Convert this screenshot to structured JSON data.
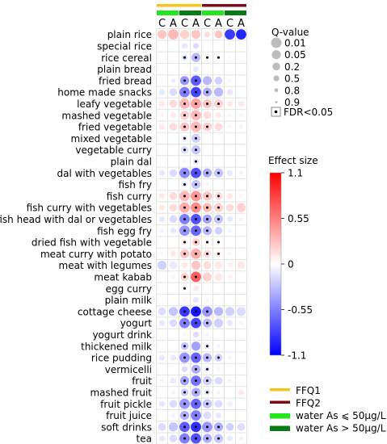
{
  "chart_data": {
    "type": "heatmap",
    "title": "",
    "columns": [
      "C",
      "A",
      "C",
      "A",
      "C",
      "A",
      "C",
      "A"
    ],
    "column_groups": {
      "ffq": [
        "FFQ1",
        "FFQ1",
        "FFQ1",
        "FFQ1",
        "FFQ2",
        "FFQ2",
        "FFQ2",
        "FFQ2"
      ],
      "water": [
        "low",
        "low",
        "high",
        "high",
        "low",
        "low",
        "high",
        "high"
      ]
    },
    "rows": [
      "plain rice",
      "special rice",
      "rice cereal",
      "plain bread",
      "fried bread",
      "home made snacks",
      "leafy vegetable",
      "mashed vegetable",
      "fried vegetable",
      "mixed vegetable",
      "vegetable curry",
      "plain dal",
      "dal with vegetables",
      "fish fry",
      "fish curry",
      "fish curry with vegetables",
      "fish head with dal or vegetables",
      "fish egg fry",
      "dried fish with vegetable",
      "meat curry with potato",
      "meat with legumes",
      "meat kabab",
      "egg curry",
      "plain milk",
      "cottage cheese",
      "yogurt",
      "yogurt drink",
      "thickened milk",
      "rice pudding",
      "vermicelli",
      "fruit",
      "mashed fruit",
      "fruit pickle",
      "fruit juice",
      "soft drinks",
      "tea"
    ],
    "effect": [
      [
        0.25,
        0.3,
        0.2,
        0.25,
        0.15,
        0.25,
        -0.85,
        -0.95
      ],
      [
        0,
        0,
        -0.1,
        -0.15,
        0,
        0,
        0,
        0
      ],
      [
        0,
        0,
        -0.15,
        -0.3,
        -0.05,
        -0.05,
        -0.05,
        0
      ],
      [
        0,
        0,
        0,
        -0.1,
        0,
        0,
        0,
        0
      ],
      [
        -0.05,
        -0.1,
        -0.45,
        -0.7,
        -0.3,
        -0.2,
        -0.05,
        0
      ],
      [
        -0.1,
        -0.15,
        -0.55,
        -0.8,
        -0.35,
        -0.3,
        -0.1,
        0
      ],
      [
        0.1,
        0.15,
        0.3,
        0.4,
        0.25,
        0.2,
        0.1,
        0.1
      ],
      [
        0.05,
        0.1,
        0.2,
        0.3,
        0.15,
        0.1,
        0.05,
        0.05
      ],
      [
        0.1,
        0.15,
        0.25,
        0.3,
        0.2,
        0.15,
        0.05,
        0.05
      ],
      [
        0,
        0,
        -0.1,
        -0.2,
        0,
        0,
        0,
        0
      ],
      [
        0,
        0,
        -0.15,
        -0.25,
        0,
        0,
        0,
        0
      ],
      [
        0,
        0,
        -0.05,
        -0.1,
        0,
        0,
        0,
        0
      ],
      [
        -0.1,
        -0.15,
        -0.5,
        -0.75,
        -0.35,
        -0.25,
        -0.1,
        -0.05
      ],
      [
        0,
        0,
        -0.1,
        -0.25,
        -0.05,
        0,
        0,
        0
      ],
      [
        0.1,
        0.15,
        0.3,
        0.45,
        0.25,
        0.15,
        0.1,
        0.05
      ],
      [
        0.1,
        0.15,
        0.35,
        0.5,
        0.3,
        0.2,
        0.15,
        0.2
      ],
      [
        -0.1,
        -0.15,
        -0.55,
        -0.75,
        -0.4,
        -0.25,
        -0.1,
        -0.05
      ],
      [
        -0.05,
        -0.1,
        -0.45,
        -0.65,
        -0.3,
        -0.2,
        -0.05,
        0
      ],
      [
        0,
        0,
        0.1,
        0.2,
        0.05,
        0.05,
        0,
        0
      ],
      [
        0.05,
        0.1,
        0.25,
        0.35,
        0.15,
        0.1,
        0.05,
        0
      ],
      [
        -0.2,
        -0.1,
        0.1,
        0.25,
        0.15,
        0.1,
        0.05,
        0.1
      ],
      [
        0,
        0.05,
        0.2,
        0.7,
        0.2,
        0.1,
        0.05,
        0
      ],
      [
        0,
        0,
        0.05,
        0.1,
        0,
        0,
        0,
        0
      ],
      [
        0,
        0,
        -0.05,
        -0.1,
        -0.05,
        0,
        0,
        0
      ],
      [
        -0.15,
        -0.25,
        -0.85,
        -1.0,
        -0.45,
        -0.3,
        -0.2,
        -0.15
      ],
      [
        -0.1,
        -0.15,
        -0.55,
        -0.8,
        -0.3,
        -0.2,
        -0.1,
        -0.05
      ],
      [
        0,
        0,
        -0.05,
        -0.15,
        -0.05,
        0,
        0,
        0
      ],
      [
        0,
        0,
        -0.25,
        -0.4,
        -0.1,
        -0.05,
        0,
        0
      ],
      [
        -0.1,
        -0.1,
        -0.45,
        -0.65,
        -0.3,
        -0.2,
        -0.05,
        0
      ],
      [
        0,
        0,
        -0.15,
        -0.35,
        -0.1,
        -0.05,
        0,
        0
      ],
      [
        -0.05,
        -0.1,
        -0.4,
        -0.6,
        -0.2,
        -0.15,
        -0.05,
        0
      ],
      [
        0,
        -0.05,
        -0.2,
        -0.35,
        -0.1,
        -0.05,
        0,
        0.1
      ],
      [
        -0.1,
        -0.15,
        -0.45,
        -0.65,
        -0.25,
        -0.15,
        -0.05,
        0
      ],
      [
        0,
        -0.05,
        -0.35,
        -0.55,
        -0.15,
        -0.1,
        0,
        0
      ],
      [
        -0.15,
        -0.25,
        -0.7,
        -0.9,
        -0.45,
        -0.35,
        -0.2,
        -0.15
      ],
      [
        -0.1,
        -0.15,
        -0.55,
        -0.75,
        -0.35,
        -0.25,
        -0.1,
        -0.05
      ]
    ],
    "qvalue": [
      [
        0.05,
        0.01,
        0.1,
        0.05,
        0.5,
        0.2,
        0.01,
        0.01
      ],
      [
        0.9,
        0.9,
        0.5,
        0.5,
        0.9,
        0.9,
        0.9,
        0.9
      ],
      [
        0.9,
        0.9,
        0.5,
        0.1,
        0.9,
        0.9,
        0.9,
        0.9
      ],
      [
        0.9,
        0.9,
        0.9,
        0.5,
        0.9,
        0.9,
        0.9,
        0.9
      ],
      [
        0.9,
        0.8,
        0.05,
        0.01,
        0.1,
        0.2,
        0.9,
        0.9
      ],
      [
        0.5,
        0.2,
        0.01,
        0.01,
        0.05,
        0.05,
        0.5,
        0.9
      ],
      [
        0.5,
        0.2,
        0.01,
        0.01,
        0.05,
        0.1,
        0.5,
        0.5
      ],
      [
        0.8,
        0.5,
        0.05,
        0.01,
        0.2,
        0.5,
        0.8,
        0.8
      ],
      [
        0.5,
        0.2,
        0.05,
        0.01,
        0.05,
        0.2,
        0.8,
        0.8
      ],
      [
        0.9,
        0.9,
        0.5,
        0.1,
        0.9,
        0.9,
        0.9,
        0.9
      ],
      [
        0.9,
        0.9,
        0.2,
        0.05,
        0.9,
        0.9,
        0.9,
        0.9
      ],
      [
        0.9,
        0.9,
        0.9,
        0.5,
        0.9,
        0.9,
        0.9,
        0.9
      ],
      [
        0.5,
        0.2,
        0.01,
        0.01,
        0.05,
        0.1,
        0.5,
        0.8
      ],
      [
        0.9,
        0.9,
        0.5,
        0.1,
        0.8,
        0.9,
        0.9,
        0.9
      ],
      [
        0.5,
        0.2,
        0.01,
        0.01,
        0.05,
        0.2,
        0.5,
        0.8
      ],
      [
        0.5,
        0.2,
        0.01,
        0.01,
        0.05,
        0.1,
        0.2,
        0.1
      ],
      [
        0.5,
        0.2,
        0.01,
        0.01,
        0.05,
        0.1,
        0.5,
        0.8
      ],
      [
        0.8,
        0.5,
        0.01,
        0.01,
        0.05,
        0.2,
        0.8,
        0.9
      ],
      [
        0.9,
        0.9,
        0.5,
        0.2,
        0.8,
        0.8,
        0.9,
        0.9
      ],
      [
        0.8,
        0.5,
        0.05,
        0.01,
        0.2,
        0.5,
        0.8,
        0.9
      ],
      [
        0.05,
        0.2,
        0.5,
        0.05,
        0.2,
        0.2,
        0.5,
        0.2
      ],
      [
        0.9,
        0.8,
        0.2,
        0.01,
        0.1,
        0.2,
        0.5,
        0.9
      ],
      [
        0.9,
        0.9,
        0.8,
        0.5,
        0.9,
        0.9,
        0.9,
        0.9
      ],
      [
        0.9,
        0.9,
        0.9,
        0.5,
        0.9,
        0.9,
        0.9,
        0.9
      ],
      [
        0.2,
        0.05,
        0.01,
        0.01,
        0.01,
        0.05,
        0.1,
        0.1
      ],
      [
        0.5,
        0.2,
        0.01,
        0.01,
        0.05,
        0.1,
        0.5,
        0.8
      ],
      [
        0.9,
        0.9,
        0.9,
        0.5,
        0.8,
        0.9,
        0.9,
        0.9
      ],
      [
        0.9,
        0.9,
        0.2,
        0.05,
        0.5,
        0.8,
        0.9,
        0.9
      ],
      [
        0.5,
        0.5,
        0.01,
        0.01,
        0.05,
        0.2,
        0.8,
        0.9
      ],
      [
        0.9,
        0.9,
        0.5,
        0.05,
        0.5,
        0.8,
        0.9,
        0.9
      ],
      [
        0.8,
        0.5,
        0.05,
        0.01,
        0.1,
        0.2,
        0.8,
        0.9
      ],
      [
        0.9,
        0.8,
        0.2,
        0.05,
        0.5,
        0.8,
        0.9,
        0.5
      ],
      [
        0.5,
        0.2,
        0.01,
        0.01,
        0.1,
        0.2,
        0.5,
        0.9
      ],
      [
        0.9,
        0.8,
        0.05,
        0.01,
        0.2,
        0.5,
        0.9,
        0.9
      ],
      [
        0.2,
        0.05,
        0.01,
        0.01,
        0.01,
        0.05,
        0.2,
        0.2
      ],
      [
        0.5,
        0.2,
        0.01,
        0.01,
        0.05,
        0.1,
        0.5,
        0.8
      ]
    ],
    "fdr": [
      [
        0,
        0,
        0,
        0,
        0,
        0,
        0,
        0
      ],
      [
        0,
        0,
        0,
        0,
        0,
        0,
        0,
        0
      ],
      [
        0,
        0,
        1,
        1,
        1,
        1,
        0,
        0
      ],
      [
        0,
        0,
        0,
        0,
        0,
        0,
        0,
        0
      ],
      [
        0,
        0,
        1,
        1,
        0,
        0,
        0,
        0
      ],
      [
        0,
        0,
        1,
        1,
        1,
        0,
        0,
        0
      ],
      [
        0,
        0,
        1,
        1,
        1,
        1,
        0,
        0
      ],
      [
        0,
        0,
        1,
        1,
        0,
        0,
        0,
        0
      ],
      [
        0,
        0,
        1,
        1,
        1,
        0,
        0,
        0
      ],
      [
        0,
        0,
        1,
        1,
        0,
        0,
        0,
        0
      ],
      [
        0,
        0,
        1,
        1,
        0,
        0,
        0,
        0
      ],
      [
        0,
        0,
        0,
        1,
        0,
        0,
        0,
        0
      ],
      [
        0,
        0,
        1,
        1,
        1,
        1,
        0,
        0
      ],
      [
        0,
        0,
        1,
        1,
        0,
        0,
        0,
        0
      ],
      [
        0,
        0,
        1,
        1,
        1,
        1,
        0,
        0
      ],
      [
        0,
        0,
        1,
        1,
        1,
        1,
        0,
        0
      ],
      [
        0,
        0,
        1,
        1,
        1,
        1,
        0,
        0
      ],
      [
        0,
        0,
        1,
        1,
        1,
        0,
        0,
        0
      ],
      [
        0,
        0,
        1,
        1,
        1,
        1,
        0,
        0
      ],
      [
        0,
        0,
        1,
        1,
        1,
        1,
        0,
        0
      ],
      [
        0,
        0,
        0,
        0,
        0,
        0,
        0,
        0
      ],
      [
        0,
        0,
        1,
        1,
        0,
        0,
        0,
        0
      ],
      [
        0,
        0,
        1,
        0,
        0,
        0,
        0,
        0
      ],
      [
        0,
        0,
        0,
        0,
        0,
        0,
        0,
        0
      ],
      [
        0,
        0,
        1,
        1,
        1,
        0,
        0,
        0
      ],
      [
        0,
        0,
        1,
        1,
        1,
        0,
        0,
        0
      ],
      [
        0,
        0,
        0,
        0,
        0,
        0,
        0,
        0
      ],
      [
        0,
        0,
        1,
        0,
        1,
        0,
        0,
        0
      ],
      [
        0,
        0,
        1,
        1,
        1,
        1,
        0,
        0
      ],
      [
        0,
        0,
        0,
        1,
        1,
        0,
        0,
        0
      ],
      [
        0,
        0,
        1,
        1,
        1,
        0,
        0,
        0
      ],
      [
        0,
        0,
        1,
        1,
        1,
        0,
        0,
        0
      ],
      [
        0,
        0,
        1,
        1,
        1,
        0,
        0,
        0
      ],
      [
        0,
        0,
        1,
        1,
        0,
        0,
        0,
        0
      ],
      [
        0,
        0,
        1,
        1,
        1,
        1,
        0,
        0
      ],
      [
        0,
        0,
        1,
        1,
        1,
        1,
        0,
        0
      ]
    ],
    "size_legend": {
      "title": "Q-value",
      "labels": [
        "0.01",
        "0.05",
        "0.2",
        "0.5",
        "0.8",
        "0.9"
      ],
      "levels": [
        0.01,
        0.05,
        0.2,
        0.5,
        0.8,
        0.9
      ],
      "fdr_label": "FDR<0.05"
    },
    "color_legend": {
      "title": "Effect size",
      "range": [
        -1.1,
        1.1
      ],
      "ticks": [
        1.1,
        0.55,
        0,
        -0.55,
        -1.1
      ],
      "tick_labels": [
        "1.1",
        "0.55",
        "0",
        "-0.55",
        "-1.1"
      ],
      "colors": [
        "#0000ff",
        "#ffffff",
        "#ff0000"
      ]
    },
    "group_legend": [
      {
        "label": "FFQ1",
        "color": "#f5c518"
      },
      {
        "label": "FFQ2",
        "color": "#7a0c1b"
      },
      {
        "label": "water As ⩽ 50μg/L",
        "color": "#22e61e"
      },
      {
        "label": "water As > 50μg/L",
        "color": "#0a7a16"
      }
    ]
  }
}
